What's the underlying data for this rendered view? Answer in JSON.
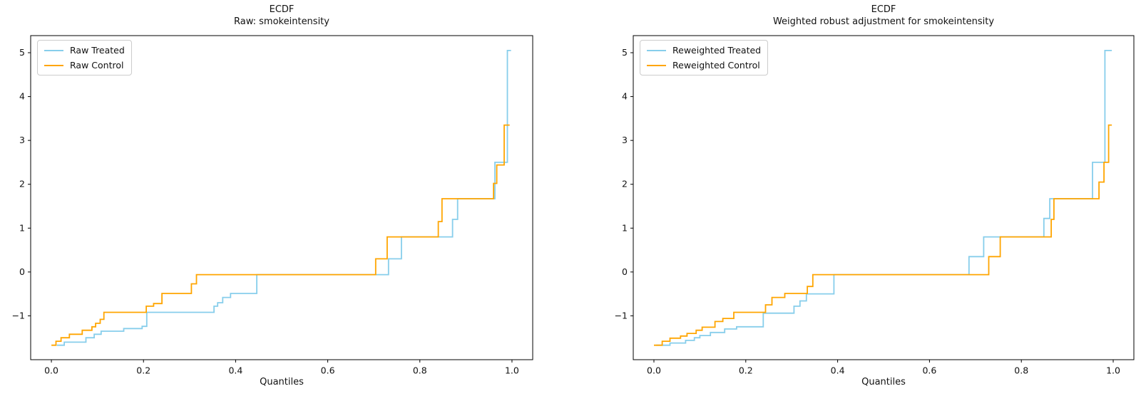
{
  "figure": {
    "background": "#ffffff",
    "axis_color": "#000000",
    "text_color": "#111111"
  },
  "chart_data": [
    {
      "type": "line",
      "step": true,
      "title": "ECDF\nRaw: smokeintensity",
      "title_line1": "ECDF",
      "title_line2": "Raw: smokeintensity",
      "xlabel": "Quantiles",
      "ylabel": "",
      "xlim": [
        -0.045,
        1.045
      ],
      "ylim": [
        -2.0,
        5.39
      ],
      "xticks": [
        0.0,
        0.2,
        0.4,
        0.6,
        0.8,
        1.0
      ],
      "xtick_labels": [
        "0.0",
        "0.2",
        "0.4",
        "0.6",
        "0.8",
        "1.0"
      ],
      "yticks": [
        -1,
        0,
        1,
        2,
        3,
        4,
        5
      ],
      "ytick_labels": [
        "−1",
        "0",
        "1",
        "2",
        "3",
        "4",
        "5"
      ],
      "grid": false,
      "legend_position": "upper left",
      "series": [
        {
          "name": "Raw Treated",
          "color": "#87CEEB",
          "points": [
            [
              0.012,
              -1.67
            ],
            [
              0.028,
              -1.6
            ],
            [
              0.075,
              -1.5
            ],
            [
              0.093,
              -1.42
            ],
            [
              0.108,
              -1.35
            ],
            [
              0.157,
              -1.29
            ],
            [
              0.197,
              -1.24
            ],
            [
              0.207,
              -0.92
            ],
            [
              0.353,
              -0.78
            ],
            [
              0.361,
              -0.7
            ],
            [
              0.372,
              -0.58
            ],
            [
              0.389,
              -0.49
            ],
            [
              0.446,
              -0.06
            ],
            [
              0.732,
              0.3
            ],
            [
              0.76,
              0.8
            ],
            [
              0.871,
              1.2
            ],
            [
              0.882,
              1.67
            ],
            [
              0.963,
              2.5
            ],
            [
              0.99,
              5.05
            ],
            [
              0.998,
              5.05
            ]
          ]
        },
        {
          "name": "Raw Control",
          "color": "#FFA500",
          "points": [
            [
              0.0,
              -1.67
            ],
            [
              0.01,
              -1.58
            ],
            [
              0.021,
              -1.5
            ],
            [
              0.039,
              -1.42
            ],
            [
              0.067,
              -1.33
            ],
            [
              0.088,
              -1.25
            ],
            [
              0.096,
              -1.17
            ],
            [
              0.106,
              -1.08
            ],
            [
              0.114,
              -0.92
            ],
            [
              0.206,
              -0.78
            ],
            [
              0.222,
              -0.72
            ],
            [
              0.24,
              -0.49
            ],
            [
              0.304,
              -0.27
            ],
            [
              0.315,
              -0.06
            ],
            [
              0.704,
              0.3
            ],
            [
              0.729,
              0.8
            ],
            [
              0.84,
              1.15
            ],
            [
              0.848,
              1.67
            ],
            [
              0.96,
              2.02
            ],
            [
              0.967,
              2.44
            ],
            [
              0.983,
              3.35
            ],
            [
              0.995,
              3.35
            ]
          ]
        }
      ]
    },
    {
      "type": "line",
      "step": true,
      "title": "ECDF\nWeighted robust adjustment for smokeintensity",
      "title_line1": "ECDF",
      "title_line2": "Weighted robust adjustment for smokeintensity",
      "xlabel": "Quantiles",
      "ylabel": "",
      "xlim": [
        -0.045,
        1.045
      ],
      "ylim": [
        -2.0,
        5.39
      ],
      "xticks": [
        0.0,
        0.2,
        0.4,
        0.6,
        0.8,
        1.0
      ],
      "xtick_labels": [
        "0.0",
        "0.2",
        "0.4",
        "0.6",
        "0.8",
        "1.0"
      ],
      "yticks": [
        -1,
        0,
        1,
        2,
        3,
        4,
        5
      ],
      "ytick_labels": [
        "−1",
        "0",
        "1",
        "2",
        "3",
        "4",
        "5"
      ],
      "grid": false,
      "legend_position": "upper left",
      "series": [
        {
          "name": "Reweighted Treated",
          "color": "#87CEEB",
          "points": [
            [
              0.005,
              -1.67
            ],
            [
              0.035,
              -1.62
            ],
            [
              0.069,
              -1.56
            ],
            [
              0.088,
              -1.5
            ],
            [
              0.1,
              -1.45
            ],
            [
              0.123,
              -1.38
            ],
            [
              0.154,
              -1.3
            ],
            [
              0.18,
              -1.25
            ],
            [
              0.238,
              -0.94
            ],
            [
              0.305,
              -0.78
            ],
            [
              0.318,
              -0.66
            ],
            [
              0.332,
              -0.5
            ],
            [
              0.392,
              -0.06
            ],
            [
              0.686,
              0.35
            ],
            [
              0.718,
              0.8
            ],
            [
              0.849,
              1.22
            ],
            [
              0.862,
              1.67
            ],
            [
              0.955,
              2.5
            ],
            [
              0.982,
              5.05
            ],
            [
              0.997,
              5.05
            ]
          ]
        },
        {
          "name": "Reweighted Control",
          "color": "#FFA500",
          "points": [
            [
              0.0,
              -1.67
            ],
            [
              0.018,
              -1.58
            ],
            [
              0.035,
              -1.51
            ],
            [
              0.058,
              -1.46
            ],
            [
              0.072,
              -1.4
            ],
            [
              0.092,
              -1.33
            ],
            [
              0.105,
              -1.26
            ],
            [
              0.133,
              -1.13
            ],
            [
              0.15,
              -1.06
            ],
            [
              0.174,
              -0.92
            ],
            [
              0.243,
              -0.75
            ],
            [
              0.257,
              -0.58
            ],
            [
              0.285,
              -0.49
            ],
            [
              0.334,
              -0.33
            ],
            [
              0.346,
              -0.06
            ],
            [
              0.729,
              0.35
            ],
            [
              0.754,
              0.8
            ],
            [
              0.865,
              1.2
            ],
            [
              0.871,
              1.67
            ],
            [
              0.969,
              2.05
            ],
            [
              0.98,
              2.5
            ],
            [
              0.99,
              3.35
            ],
            [
              0.997,
              3.35
            ]
          ]
        }
      ]
    }
  ]
}
